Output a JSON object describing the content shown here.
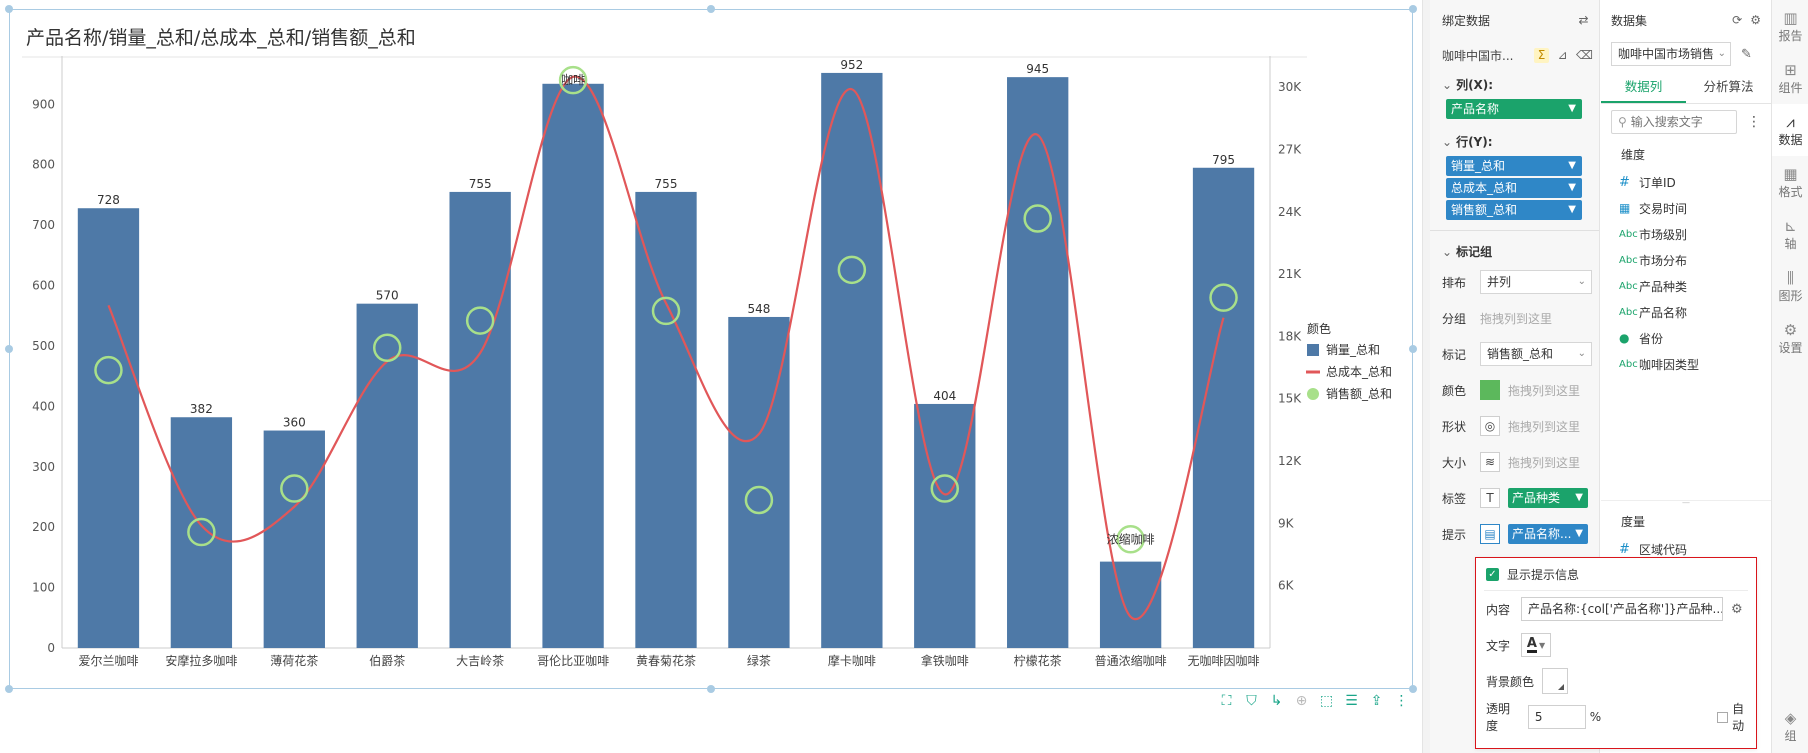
{
  "chart_data": {
    "type": "bar",
    "title": "产品名称/销量_总和/总成本_总和/销售额_总和",
    "categories": [
      "爱尔兰咖啡",
      "安摩拉多咖啡",
      "薄荷花茶",
      "伯爵茶",
      "大吉岭茶",
      "哥伦比亚咖啡",
      "黄春菊花茶",
      "绿茶",
      "摩卡咖啡",
      "拿铁咖啡",
      "柠檬花茶",
      "普通浓缩咖啡",
      "无咖啡因咖啡"
    ],
    "series": [
      {
        "name": "销量_总和",
        "kind": "bar",
        "axis": "left",
        "color": "#4e79a7",
        "values": [
          728,
          382,
          360,
          570,
          755,
          934,
          755,
          548,
          952,
          404,
          945,
          143,
          795
        ],
        "labels": [
          "728",
          "382",
          "360",
          "570",
          "755",
          "",
          "755",
          "548",
          "952",
          "404",
          "945",
          "",
          "795"
        ]
      },
      {
        "name": "总成本_总和",
        "kind": "line",
        "axis": "right",
        "color": "#e15759",
        "values": [
          19500,
          8900,
          9800,
          16800,
          17200,
          30500,
          19600,
          13300,
          29900,
          10400,
          27700,
          4500,
          18900
        ]
      },
      {
        "name": "销售额_总和",
        "kind": "circle",
        "axis": "left",
        "color": "#a8e08a",
        "values": [
          460,
          192,
          264,
          497,
          542,
          940,
          558,
          245,
          626,
          264,
          711,
          180,
          580
        ]
      }
    ],
    "point_labels": [
      {
        "index": 5,
        "text": "咖啡"
      },
      {
        "index": 11,
        "text": "浓缩咖啡"
      }
    ],
    "y_left": {
      "ylim": [
        0,
        980
      ],
      "ticks": [
        "0",
        "100",
        "200",
        "300",
        "400",
        "500",
        "600",
        "700",
        "800",
        "900"
      ]
    },
    "y_right": {
      "ylim": [
        3000,
        31500
      ],
      "ticks": [
        "6K",
        "9K",
        "12K",
        "15K",
        "18K",
        "21K",
        "24K",
        "27K",
        "30K"
      ]
    },
    "legend": {
      "title": "颜色",
      "placement": "right",
      "items": [
        "销量_总和",
        "总成本_总和",
        "销售额_总和"
      ]
    },
    "grid": false
  },
  "binding": {
    "title": "绑定数据",
    "source": "咖啡中国市...",
    "columns_label": "列(X):",
    "columns": [
      "产品名称"
    ],
    "rows_label": "行(Y):",
    "rows": [
      "销量_总和",
      "总成本_总和",
      "销售额_总和"
    ],
    "marks_label": "标记组",
    "arrange_label": "排布",
    "arrange_value": "并列",
    "group_label": "分组",
    "group_drop": "拖拽列到这里",
    "mark_label": "标记",
    "mark_value": "销售额_总和",
    "color_label": "颜色",
    "color_drop": "拖拽列到这里",
    "shape_label": "形状",
    "shape_drop": "拖拽列到这里",
    "size_label": "大小",
    "size_drop": "拖拽列到这里",
    "label_label": "标签",
    "label_value": "产品种类",
    "tip_label": "提示",
    "tip_value": "产品名称..."
  },
  "dataset": {
    "title": "数据集",
    "selected": "咖啡中国市场销售",
    "tabs": [
      "数据列",
      "分析算法"
    ],
    "search_placeholder": "输入搜索文字",
    "dimension_label": "维度",
    "dimensions": [
      {
        "type": "number",
        "name": "订单ID"
      },
      {
        "type": "date",
        "name": "交易时间"
      },
      {
        "type": "text",
        "name": "市场级别"
      },
      {
        "type": "text",
        "name": "市场分布"
      },
      {
        "type": "text",
        "name": "产品种类"
      },
      {
        "type": "text",
        "name": "产品名称"
      },
      {
        "type": "geo",
        "name": "省份"
      },
      {
        "type": "text",
        "name": "咖啡因类型"
      }
    ],
    "measure_label": "度量",
    "measures": [
      {
        "type": "number",
        "name": "区域代码"
      }
    ]
  },
  "rail": [
    "报告",
    "组件",
    "数据",
    "格式",
    "轴",
    "图形",
    "设置",
    "组"
  ],
  "tooltip_popup": {
    "show_label": "显示提示信息",
    "content_label": "内容",
    "content_value": "产品名称:{col['产品名称']}产品种...",
    "text_label": "文字",
    "text_glyph": "A",
    "bg_label": "背景颜色",
    "opacity_label": "透明度",
    "opacity_value": "5",
    "opacity_unit": "%",
    "auto_label": "自动"
  },
  "text_type_glyph": "Abc"
}
